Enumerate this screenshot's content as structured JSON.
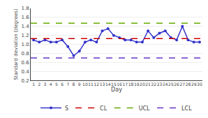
{
  "chart_data": {
    "type": "line",
    "xlabel": "Day",
    "ylabel": "Standard deviation (degrees)",
    "x": [
      1,
      2,
      3,
      4,
      5,
      6,
      7,
      8,
      9,
      10,
      11,
      12,
      13,
      14,
      15,
      16,
      17,
      18,
      19,
      20,
      21,
      22,
      23,
      24,
      25,
      26,
      27,
      28,
      29,
      30
    ],
    "series": [
      {
        "name": "S",
        "type": "line",
        "color": "#3333cc",
        "marker": "circle",
        "line_style": "solid",
        "values": [
          1.1,
          1.05,
          1.1,
          1.05,
          1.05,
          1.1,
          0.95,
          0.75,
          0.85,
          1.05,
          1.1,
          1.05,
          1.3,
          1.35,
          1.2,
          1.15,
          1.1,
          1.1,
          1.05,
          1.05,
          1.3,
          1.15,
          1.25,
          1.3,
          1.15,
          1.1,
          1.4,
          1.1,
          1.05,
          1.05
        ]
      },
      {
        "name": "CL",
        "type": "hline",
        "color": "#cc0000",
        "line_style": "dashed",
        "value": 1.13
      },
      {
        "name": "UCL",
        "type": "hline",
        "color": "#66aa00",
        "line_style": "dashed",
        "value": 1.47
      },
      {
        "name": "LCL",
        "type": "hline",
        "color": "#6633cc",
        "line_style": "dashed",
        "value": 0.7
      }
    ],
    "xlim": [
      0.5,
      30.5
    ],
    "xticks": [
      1,
      2,
      3,
      4,
      5,
      6,
      7,
      8,
      9,
      10,
      11,
      12,
      13,
      14,
      15,
      16,
      17,
      18,
      19,
      20,
      21,
      22,
      23,
      24,
      25,
      26,
      27,
      28,
      29,
      30
    ],
    "ylim": [
      0.2,
      1.8
    ],
    "yticks": [
      0.2,
      0.4,
      0.6,
      0.8,
      {
        "value": 1.0,
        "label": "1.0"
      },
      1.2,
      1.4,
      1.6,
      1.8
    ],
    "grid": "y",
    "legend": "bottom"
  }
}
